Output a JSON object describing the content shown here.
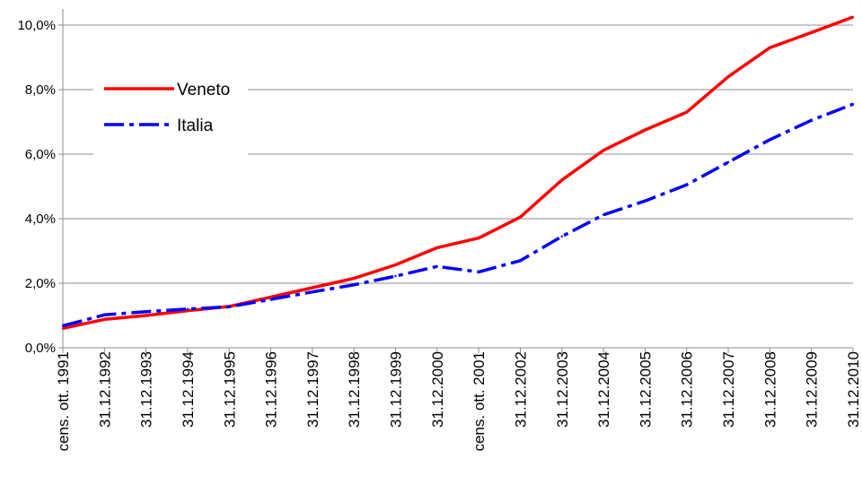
{
  "chart_data": {
    "type": "line",
    "title": "",
    "xlabel": "",
    "ylabel": "",
    "categories": [
      "cens. ott. 1991",
      "31.12.1992",
      "31.12.1993",
      "31.12.1994",
      "31.12.1995",
      "31.12.1996",
      "31.12.1997",
      "31.12.1998",
      "31.12.1999",
      "31.12.2000",
      "cens. ott. 2001",
      "31.12.2002",
      "31.12.2003",
      "31.12.2004",
      "31.12.2005",
      "31.12.2006",
      "31.12.2007",
      "31.12.2008",
      "31.12.2009",
      "31.12.2010"
    ],
    "y_ticks": [
      "0,0%",
      "2,0%",
      "4,0%",
      "6,0%",
      "8,0%",
      "10,0%"
    ],
    "y_tick_values": [
      0,
      2,
      4,
      6,
      8,
      10
    ],
    "ylim": [
      0,
      10.5
    ],
    "grid": true,
    "legend_position": "top-left inside plot",
    "series": [
      {
        "name": "Veneto",
        "color": "#ff0000",
        "line_style": "solid",
        "values": [
          0.6,
          0.88,
          1.0,
          1.15,
          1.28,
          1.57,
          1.86,
          2.15,
          2.57,
          3.1,
          3.4,
          4.05,
          5.2,
          6.12,
          6.75,
          7.3,
          8.4,
          9.3,
          9.77,
          10.25
        ]
      },
      {
        "name": "Italia",
        "color": "#0000ff",
        "line_style": "dash-dot",
        "values": [
          0.68,
          1.02,
          1.12,
          1.2,
          1.27,
          1.5,
          1.73,
          1.95,
          2.22,
          2.52,
          2.35,
          2.7,
          3.45,
          4.12,
          4.55,
          5.05,
          5.75,
          6.45,
          7.05,
          7.55
        ]
      }
    ]
  }
}
